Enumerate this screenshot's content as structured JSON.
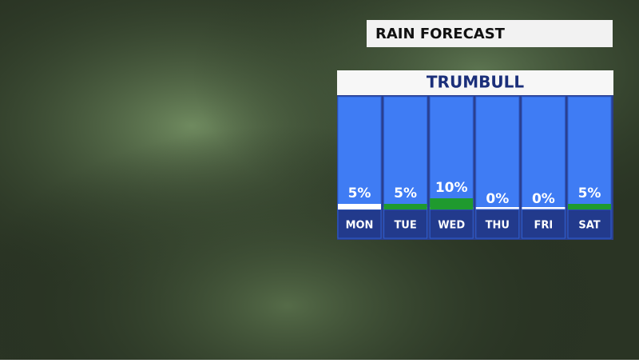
{
  "chart_data": {
    "type": "bar",
    "title": "RAIN FORECAST",
    "subtitle": "TRUMBULL",
    "categories": [
      "MON",
      "TUE",
      "WED",
      "THU",
      "FRI",
      "SAT"
    ],
    "values": [
      5,
      5,
      10,
      0,
      0,
      5
    ],
    "value_labels": [
      "5%",
      "5%",
      "10%",
      "0%",
      "0%",
      "5%"
    ],
    "colors": [
      "#ffffff",
      "#1f9a2e",
      "#1f9a2e",
      "#ffffff",
      "#ffffff",
      "#1f9a2e"
    ],
    "ylim": [
      0,
      100
    ]
  }
}
